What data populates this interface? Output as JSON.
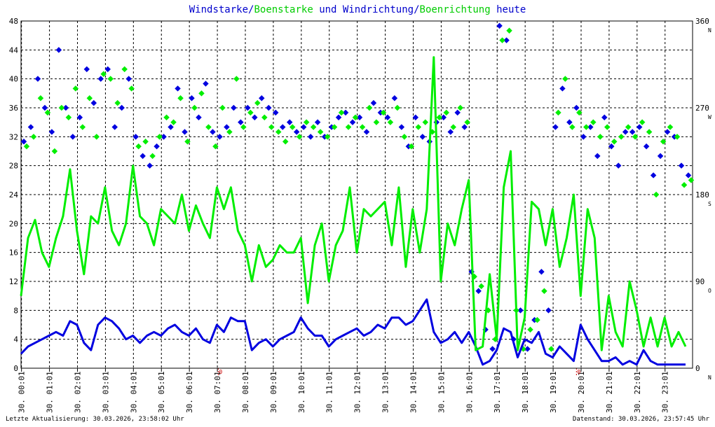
{
  "title_parts": [
    {
      "text": "Windstarke",
      "color": "#0000cc"
    },
    {
      "text": "/",
      "color": "#0000cc"
    },
    {
      "text": "Boenstarke",
      "color": "#00cc00"
    },
    {
      "text": " und ",
      "color": "#0000cc"
    },
    {
      "text": "Windrichtung",
      "color": "#0000cc"
    },
    {
      "text": "/",
      "color": "#0000cc"
    },
    {
      "text": "Boenrichtung",
      "color": "#00cc00"
    },
    {
      "text": " heute",
      "color": "#0000cc"
    }
  ],
  "footer": {
    "left": "Letzte Aktualisierung: 30.03.2026, 23:58:02 Uhr",
    "right": "Datenstand: 30.03.2026, 23:57:45 Uhr"
  },
  "colors": {
    "wind": "#0000e0",
    "gust": "#00ee00",
    "grid": "#000000",
    "text": "#000000",
    "marker": "#cc0000"
  },
  "chart_data": {
    "type": "line",
    "title": "Windstarke/Boenstarke und Windrichtung/Boenrichtung heute",
    "xlabel": "",
    "ylabel": "",
    "x_tick_labels": [
      "30. 00:01",
      "30. 01:01",
      "30. 02:01",
      "30. 03:01",
      "30. 04:01",
      "30. 05:01",
      "30. 06:01",
      "30. 07:01",
      "30. 08:01",
      "30. 09:01",
      "30. 10:01",
      "30. 11:01",
      "30. 12:01",
      "30. 13:01",
      "30. 14:01",
      "30. 15:01",
      "30. 16:01",
      "30. 17:01",
      "30. 18:01",
      "30. 19:01",
      "30. 20:01",
      "30. 21:01",
      "30. 22:01",
      "30. 23:01"
    ],
    "x_tick_hours": [
      0.0167,
      1.0167,
      2.0167,
      3.0167,
      4.0167,
      5.0167,
      6.0167,
      7.0167,
      8.0167,
      9.0167,
      10.0167,
      11.0167,
      12.0167,
      13.0167,
      14.0167,
      15.0167,
      16.0167,
      17.0167,
      18.0167,
      19.0167,
      20.0167,
      21.0167,
      22.0167,
      23.0167
    ],
    "x_range_hours": [
      0,
      24
    ],
    "y_left": {
      "range": [
        0,
        48
      ],
      "ticks": [
        0,
        4,
        8,
        12,
        16,
        20,
        24,
        28,
        32,
        36,
        40,
        44,
        48
      ]
    },
    "y_right": {
      "range": [
        0,
        360
      ],
      "ticks": [
        0,
        90,
        180,
        270,
        360
      ],
      "direction_labels": [
        "N",
        "O",
        "S",
        "W",
        "N"
      ]
    },
    "special_marks": [
      {
        "hour": 7.05,
        "label": "0"
      },
      {
        "hour": 19.85,
        "label": "0"
      }
    ],
    "series": [
      {
        "name": "Windstarke",
        "axis": "left",
        "style": "line",
        "x": [
          0,
          0.25,
          0.5,
          0.75,
          1,
          1.25,
          1.5,
          1.75,
          2,
          2.25,
          2.5,
          2.75,
          3,
          3.25,
          3.5,
          3.75,
          4,
          4.25,
          4.5,
          4.75,
          5,
          5.25,
          5.5,
          5.75,
          6,
          6.25,
          6.5,
          6.75,
          7,
          7.25,
          7.5,
          7.75,
          8,
          8.25,
          8.5,
          8.75,
          9,
          9.25,
          9.5,
          9.75,
          10,
          10.25,
          10.5,
          10.75,
          11,
          11.25,
          11.5,
          11.75,
          12,
          12.25,
          12.5,
          12.75,
          13,
          13.25,
          13.5,
          13.75,
          14,
          14.25,
          14.5,
          14.75,
          15,
          15.25,
          15.5,
          15.75,
          16,
          16.25,
          16.5,
          16.75,
          17,
          17.25,
          17.5,
          17.75,
          18,
          18.25,
          18.5,
          18.75,
          19,
          19.25,
          19.5,
          19.75,
          20,
          20.25,
          20.5,
          20.75,
          21,
          21.25,
          21.5,
          21.75,
          22,
          22.25,
          22.5,
          22.75,
          23,
          23.25,
          23.5,
          23.75
        ],
        "values": [
          2,
          3,
          3.5,
          4,
          4.5,
          5,
          4.5,
          6.5,
          6,
          3.5,
          2.5,
          6,
          7,
          6.5,
          5.5,
          4,
          4.5,
          3.5,
          4.5,
          5,
          4.5,
          5.5,
          6,
          5,
          4.5,
          5.5,
          4,
          3.5,
          6,
          5,
          7,
          6.5,
          6.5,
          2.5,
          3.5,
          4,
          3,
          4,
          4.5,
          5,
          7,
          5.5,
          4.5,
          4.5,
          3,
          4,
          4.5,
          5,
          5.5,
          4.5,
          5,
          6,
          5.5,
          7,
          7,
          6,
          6.5,
          8,
          9.5,
          5,
          3.5,
          4,
          5,
          3.5,
          5,
          3,
          0.5,
          1,
          2.5,
          5.5,
          5,
          1.5,
          4,
          3.5,
          5,
          2,
          1.5,
          3,
          2,
          1,
          6,
          4,
          2.5,
          1,
          1,
          1.5,
          0.5,
          1,
          0.5,
          2.5,
          1,
          0.5,
          0.5,
          0.5,
          0.5,
          0.5
        ]
      },
      {
        "name": "Boenstarke",
        "axis": "left",
        "style": "line",
        "x": [
          0,
          0.25,
          0.5,
          0.75,
          1,
          1.25,
          1.5,
          1.75,
          2,
          2.25,
          2.5,
          2.75,
          3,
          3.25,
          3.5,
          3.75,
          4,
          4.25,
          4.5,
          4.75,
          5,
          5.25,
          5.5,
          5.75,
          6,
          6.25,
          6.5,
          6.75,
          7,
          7.25,
          7.5,
          7.75,
          8,
          8.25,
          8.5,
          8.75,
          9,
          9.25,
          9.5,
          9.75,
          10,
          10.25,
          10.5,
          10.75,
          11,
          11.25,
          11.5,
          11.75,
          12,
          12.25,
          12.5,
          12.75,
          13,
          13.25,
          13.5,
          13.75,
          14,
          14.25,
          14.5,
          14.75,
          15,
          15.25,
          15.5,
          15.75,
          16,
          16.25,
          16.5,
          16.75,
          17,
          17.25,
          17.5,
          17.75,
          18,
          18.25,
          18.5,
          18.75,
          19,
          19.25,
          19.5,
          19.75,
          20,
          20.25,
          20.5,
          20.75,
          21,
          21.25,
          21.5,
          21.75,
          22,
          22.25,
          22.5,
          22.75,
          23,
          23.25,
          23.5,
          23.75
        ],
        "values": [
          10,
          18,
          20.5,
          16,
          14,
          18,
          21,
          27.5,
          19,
          13,
          21,
          20,
          25,
          19,
          17,
          20,
          28,
          21,
          20,
          17,
          22,
          21,
          20,
          24,
          19,
          22.5,
          20,
          18,
          25,
          22,
          25,
          19,
          17,
          12,
          17,
          14,
          15,
          17,
          16,
          16,
          18,
          9,
          17,
          20,
          12,
          17,
          19,
          25,
          16,
          22,
          21,
          22,
          23,
          17,
          25,
          14,
          22,
          16,
          22,
          43,
          12,
          20,
          17,
          22,
          26,
          2.5,
          3,
          13,
          4,
          25,
          30,
          2.5,
          7,
          23,
          22,
          17,
          22,
          14,
          18,
          24,
          10,
          22,
          18,
          2.5,
          10,
          5,
          3,
          12,
          8,
          3,
          7,
          3,
          7,
          3,
          5,
          3
        ]
      },
      {
        "name": "Windrichtung",
        "axis": "right",
        "style": "scatter",
        "x": [
          0.1,
          0.35,
          0.6,
          0.85,
          1.1,
          1.35,
          1.6,
          1.85,
          2.1,
          2.35,
          2.6,
          2.85,
          3.1,
          3.35,
          3.6,
          3.85,
          4.1,
          4.35,
          4.6,
          4.85,
          5.1,
          5.35,
          5.6,
          5.85,
          6.1,
          6.35,
          6.6,
          6.85,
          7.1,
          7.35,
          7.6,
          7.85,
          8.1,
          8.35,
          8.6,
          8.85,
          9.1,
          9.35,
          9.6,
          9.85,
          10.1,
          10.35,
          10.6,
          10.85,
          11.1,
          11.35,
          11.6,
          11.85,
          12.1,
          12.35,
          12.6,
          12.85,
          13.1,
          13.35,
          13.6,
          13.85,
          14.1,
          14.35,
          14.6,
          14.85,
          15.1,
          15.35,
          15.6,
          15.85,
          16.1,
          16.35,
          16.6,
          16.85,
          17.1,
          17.35,
          17.6,
          17.85,
          18.1,
          18.35,
          18.6,
          18.85,
          19.1,
          19.35,
          19.6,
          19.85,
          20.1,
          20.35,
          20.6,
          20.85,
          21.1,
          21.35,
          21.6,
          21.85,
          22.1,
          22.35,
          22.6,
          22.85,
          23.1,
          23.35,
          23.6,
          23.85
        ],
        "values": [
          235,
          250,
          300,
          270,
          245,
          330,
          270,
          240,
          260,
          310,
          275,
          300,
          310,
          250,
          270,
          300,
          240,
          220,
          210,
          230,
          240,
          250,
          290,
          245,
          280,
          260,
          295,
          245,
          240,
          250,
          270,
          255,
          270,
          260,
          280,
          270,
          265,
          250,
          255,
          245,
          250,
          240,
          255,
          240,
          250,
          260,
          265,
          255,
          260,
          245,
          275,
          265,
          260,
          280,
          250,
          230,
          260,
          240,
          235,
          255,
          260,
          245,
          265,
          250,
          100,
          80,
          40,
          20,
          355,
          340,
          30,
          60,
          20,
          50,
          100,
          60,
          250,
          290,
          255,
          270,
          240,
          250,
          220,
          260,
          230,
          210,
          245,
          245,
          250,
          230,
          200,
          220,
          245,
          240,
          210,
          200
        ]
      },
      {
        "name": "Boenrichtung",
        "axis": "right",
        "style": "scatter",
        "x": [
          0.2,
          0.45,
          0.7,
          0.95,
          1.2,
          1.45,
          1.7,
          1.95,
          2.2,
          2.45,
          2.7,
          2.95,
          3.2,
          3.45,
          3.7,
          3.95,
          4.2,
          4.45,
          4.7,
          4.95,
          5.2,
          5.45,
          5.7,
          5.95,
          6.2,
          6.45,
          6.7,
          6.95,
          7.2,
          7.45,
          7.7,
          7.95,
          8.2,
          8.45,
          8.7,
          8.95,
          9.2,
          9.45,
          9.7,
          9.95,
          10.2,
          10.45,
          10.7,
          10.95,
          11.2,
          11.45,
          11.7,
          11.95,
          12.2,
          12.45,
          12.7,
          12.95,
          13.2,
          13.45,
          13.7,
          13.95,
          14.2,
          14.45,
          14.7,
          14.95,
          15.2,
          15.45,
          15.7,
          15.95,
          16.2,
          16.45,
          16.7,
          16.95,
          17.2,
          17.45,
          17.7,
          17.95,
          18.2,
          18.45,
          18.7,
          18.95,
          19.2,
          19.45,
          19.7,
          19.95,
          20.2,
          20.45,
          20.7,
          20.95,
          21.2,
          21.45,
          21.7,
          21.95,
          22.2,
          22.45,
          22.7,
          22.95,
          23.2,
          23.45,
          23.7,
          23.95
        ],
        "values": [
          230,
          240,
          280,
          265,
          225,
          270,
          260,
          290,
          250,
          280,
          240,
          305,
          300,
          275,
          310,
          290,
          230,
          235,
          220,
          240,
          260,
          255,
          280,
          235,
          270,
          285,
          250,
          230,
          270,
          245,
          300,
          250,
          265,
          275,
          260,
          250,
          245,
          235,
          250,
          240,
          255,
          250,
          245,
          240,
          250,
          265,
          250,
          260,
          250,
          270,
          255,
          265,
          255,
          270,
          240,
          230,
          250,
          255,
          245,
          260,
          265,
          250,
          270,
          255,
          95,
          85,
          60,
          30,
          340,
          350,
          60,
          20,
          40,
          50,
          80,
          20,
          265,
          300,
          250,
          265,
          250,
          255,
          240,
          250,
          235,
          240,
          250,
          240,
          255,
          245,
          180,
          235,
          250,
          240,
          190,
          195
        ]
      }
    ]
  }
}
